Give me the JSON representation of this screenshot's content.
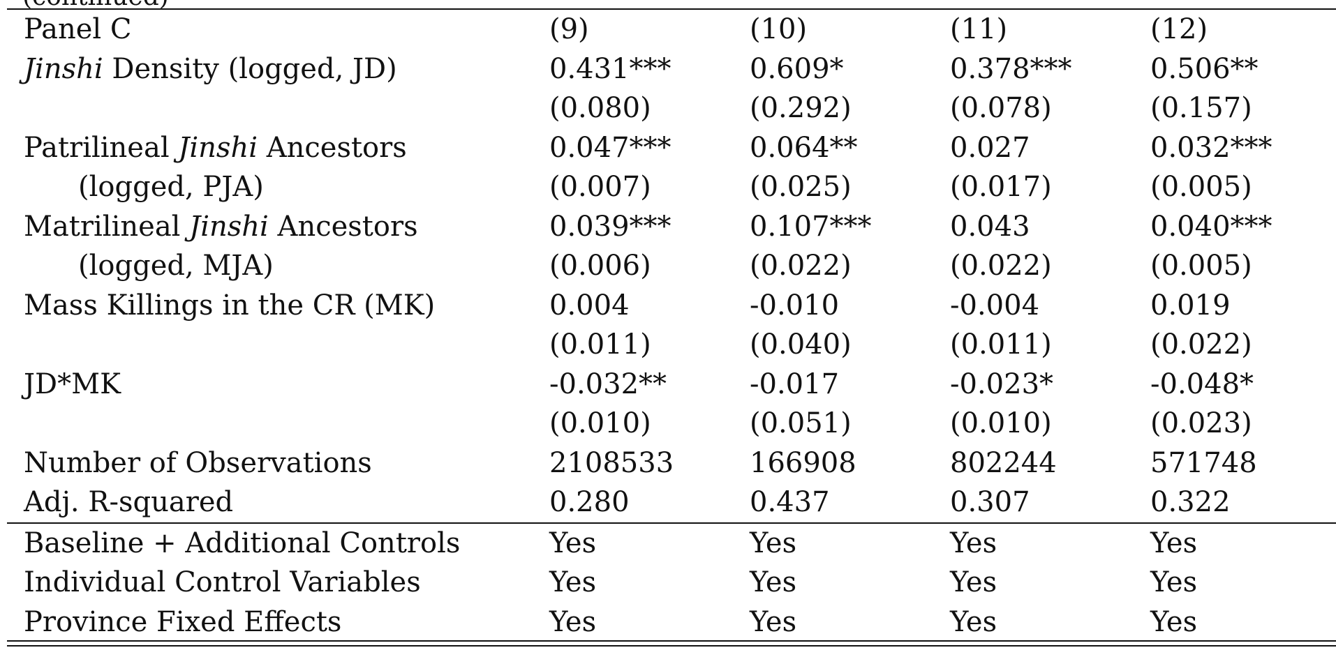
{
  "clipped_top_text": "(continued)",
  "table": {
    "panel_label": "Panel C",
    "columns": [
      "(9)",
      "(10)",
      "(11)",
      "(12)"
    ],
    "rows": [
      {
        "label_prefix": "",
        "label_italic": "Jinshi",
        "label_suffix": " Density (logged, JD)",
        "coef": [
          "0.431***",
          "0.609*",
          "0.378***",
          "0.506**"
        ],
        "se": [
          "(0.080)",
          "(0.292)",
          "(0.078)",
          "(0.157)"
        ],
        "se_label": ""
      },
      {
        "label_prefix": "Patrilineal ",
        "label_italic": "Jinshi",
        "label_suffix": " Ancestors",
        "coef": [
          "0.047***",
          "0.064**",
          "0.027",
          "0.032***"
        ],
        "se": [
          "(0.007)",
          "(0.025)",
          "(0.017)",
          "(0.005)"
        ],
        "se_label": "(logged, PJA)"
      },
      {
        "label_prefix": "Matrilineal ",
        "label_italic": "Jinshi",
        "label_suffix": " Ancestors",
        "coef": [
          "0.039***",
          "0.107***",
          "0.043",
          "0.040***"
        ],
        "se": [
          "(0.006)",
          "(0.022)",
          "(0.022)",
          "(0.005)"
        ],
        "se_label": "(logged, MJA)"
      },
      {
        "label_prefix": "Mass Killings in the CR (MK)",
        "label_italic": "",
        "label_suffix": "",
        "coef": [
          "0.004",
          "-0.010",
          "-0.004",
          "0.019"
        ],
        "se": [
          "(0.011)",
          "(0.040)",
          "(0.011)",
          "(0.022)"
        ],
        "se_label": ""
      },
      {
        "label_prefix": "JD*MK",
        "label_italic": "",
        "label_suffix": "",
        "coef": [
          "-0.032**",
          "-0.017",
          "-0.023*",
          "-0.048*"
        ],
        "se": [
          "(0.010)",
          "(0.051)",
          "(0.010)",
          "(0.023)"
        ],
        "se_label": ""
      }
    ],
    "stats": [
      {
        "label": "Number of Observations",
        "values": [
          "2108533",
          "166908",
          "802244",
          "571748"
        ]
      },
      {
        "label": "Adj. R-squared",
        "values": [
          "0.280",
          "0.437",
          "0.307",
          "0.322"
        ]
      }
    ],
    "controls": [
      {
        "label": "Baseline + Additional Controls",
        "values": [
          "Yes",
          "Yes",
          "Yes",
          "Yes"
        ]
      },
      {
        "label": "Individual Control Variables",
        "values": [
          "Yes",
          "Yes",
          "Yes",
          "Yes"
        ]
      },
      {
        "label": "Province Fixed Effects",
        "values": [
          "Yes",
          "Yes",
          "Yes",
          "Yes"
        ]
      }
    ]
  }
}
